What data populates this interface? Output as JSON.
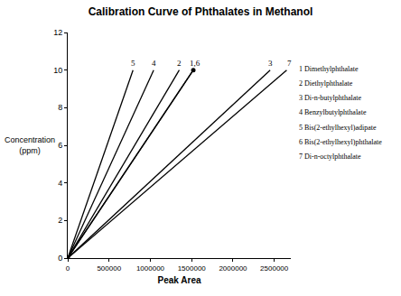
{
  "chart_data": {
    "type": "line",
    "title": "Calibration Curve of Phthalates in Methanol",
    "x_label": "Peak Area",
    "y_label": "Concentration (ppm)",
    "xlim": [
      0,
      2700000
    ],
    "xticks": [
      0,
      500000,
      1000000,
      1500000,
      2000000,
      2500000
    ],
    "ylim": [
      0,
      12
    ],
    "yticks": [
      0,
      2,
      4,
      6,
      8,
      10,
      12
    ],
    "grid": false,
    "series": [
      {
        "name": "1 Dimethylphthalate",
        "color": "#000000",
        "x": [
          0,
          1520000
        ],
        "values": [
          0,
          10
        ]
      },
      {
        "name": "2 Diethylphthalate",
        "color": "#000000",
        "x": [
          0,
          1350000
        ],
        "values": [
          0,
          10
        ]
      },
      {
        "name": "3 Di-n-butylphthalate",
        "color": "#000000",
        "x": [
          0,
          2450000
        ],
        "values": [
          0,
          10
        ]
      },
      {
        "name": "4 Benzylbutylphthalate",
        "color": "#000000",
        "x": [
          0,
          1040000
        ],
        "values": [
          0,
          10
        ]
      },
      {
        "name": "5 Bis(2-ethylhexyl)adipate",
        "color": "#000000",
        "x": [
          0,
          790000
        ],
        "values": [
          0,
          10
        ]
      },
      {
        "name": "6 Bis(2-ethylhexyl)phthalate",
        "color": "#000000",
        "x": [
          0,
          1520000
        ],
        "values": [
          0,
          10
        ],
        "marker": "circle"
      },
      {
        "name": "7 Di-n-octylphthalate",
        "color": "#000000",
        "x": [
          0,
          2650000
        ],
        "values": [
          0,
          10
        ]
      }
    ],
    "annotations": [
      {
        "text": "5",
        "x": 790000,
        "y": 10
      },
      {
        "text": "4",
        "x": 1040000,
        "y": 10
      },
      {
        "text": "2",
        "x": 1350000,
        "y": 10
      },
      {
        "text": "1,6",
        "x": 1540000,
        "y": 10
      },
      {
        "text": "3",
        "x": 2450000,
        "y": 10
      },
      {
        "text": "7",
        "x": 2680000,
        "y": 10
      }
    ]
  }
}
